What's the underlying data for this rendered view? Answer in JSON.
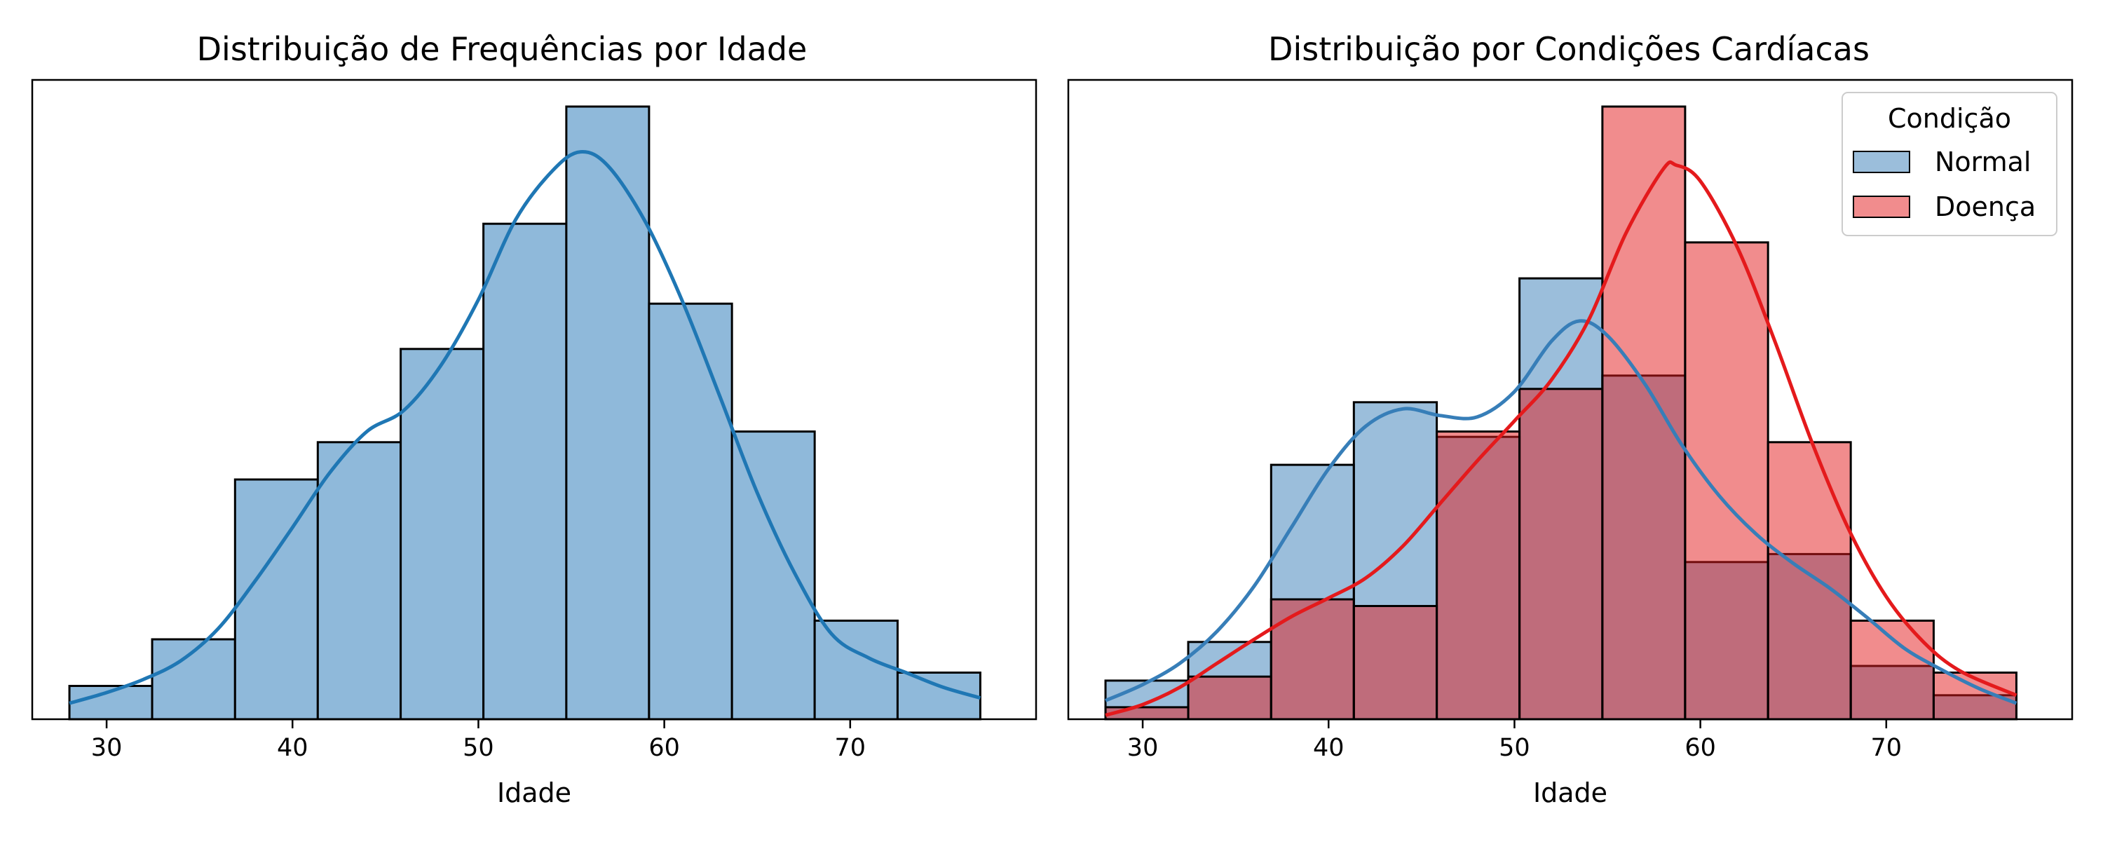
{
  "chart_data": [
    {
      "type": "histogram",
      "title": "Distribuição de Frequências por Idade",
      "xlabel": "Idade",
      "ylabel": "",
      "xlim": [
        26,
        80
      ],
      "ylim": [
        0,
        48
      ],
      "xticks": [
        30,
        40,
        50,
        60,
        70
      ],
      "bin_edges": [
        28,
        32.45,
        36.91,
        41.36,
        45.82,
        50.27,
        54.73,
        59.18,
        63.64,
        68.09,
        72.55,
        77
      ],
      "counts": [
        2.5,
        6,
        18,
        20.8,
        27.8,
        37.2,
        46,
        31.2,
        21.6,
        7.4,
        3.5
      ],
      "kde_color": "#1f77b4",
      "bar_color": "#8fb9da",
      "kde": [
        [
          28,
          1.2
        ],
        [
          30,
          2
        ],
        [
          32,
          3
        ],
        [
          34,
          4.4
        ],
        [
          36,
          6.8
        ],
        [
          38,
          10.4
        ],
        [
          40,
          14.4
        ],
        [
          42,
          18.5
        ],
        [
          44,
          21.6
        ],
        [
          46,
          23.2
        ],
        [
          48,
          26.6
        ],
        [
          50,
          31.5
        ],
        [
          52,
          37.5
        ],
        [
          54,
          41.2
        ],
        [
          55.5,
          42.6
        ],
        [
          57,
          41.5
        ],
        [
          59,
          37.3
        ],
        [
          61,
          31.3
        ],
        [
          63,
          24.2
        ],
        [
          65,
          17
        ],
        [
          67,
          11
        ],
        [
          69,
          6.4
        ],
        [
          71,
          4.6
        ],
        [
          73,
          3.5
        ],
        [
          75,
          2.4
        ],
        [
          77,
          1.6
        ]
      ]
    },
    {
      "type": "histogram",
      "title": "Distribuição por Condições Cardíacas",
      "xlabel": "Idade",
      "ylabel": "",
      "xlim": [
        26,
        80
      ],
      "ylim": [
        0,
        48
      ],
      "xticks": [
        30,
        40,
        50,
        60,
        70
      ],
      "bin_edges": [
        28,
        32.45,
        36.91,
        41.36,
        45.82,
        50.27,
        54.73,
        59.18,
        63.64,
        68.09,
        72.55,
        77
      ],
      "legend": {
        "title": "Condição",
        "placement": "upper-right"
      },
      "series": [
        {
          "name": "Normal",
          "color": "#377eb8",
          "fill": "#9dbedd",
          "counts": [
            2.9,
            5.8,
            19.1,
            23.8,
            21.2,
            33.1,
            25.8,
            11.8,
            12.4,
            4,
            1.8
          ],
          "kde": [
            [
              28,
              1.4
            ],
            [
              30,
              2.6
            ],
            [
              32,
              4.2
            ],
            [
              34,
              6.6
            ],
            [
              36,
              10
            ],
            [
              38,
              14.4
            ],
            [
              40,
              18.8
            ],
            [
              42,
              22
            ],
            [
              44,
              23.3
            ],
            [
              46,
              22.8
            ],
            [
              48,
              22.7
            ],
            [
              50,
              24.6
            ],
            [
              52,
              28.4
            ],
            [
              53.5,
              29.9
            ],
            [
              55,
              28.8
            ],
            [
              57,
              25.2
            ],
            [
              59,
              20.6
            ],
            [
              61,
              16.8
            ],
            [
              63,
              13.9
            ],
            [
              65,
              11.7
            ],
            [
              67,
              9.8
            ],
            [
              69,
              7.6
            ],
            [
              71,
              5.3
            ],
            [
              73,
              3.7
            ],
            [
              75,
              2.3
            ],
            [
              77,
              1.2
            ]
          ]
        },
        {
          "name": "Doença",
          "color": "#e41a1c",
          "fill": "#f08b8c",
          "counts": [
            0.9,
            3.2,
            9,
            8.5,
            21.6,
            24.8,
            46,
            35.8,
            20.8,
            7.4,
            3.5
          ],
          "kde": [
            [
              28,
              0.3
            ],
            [
              30,
              1.1
            ],
            [
              32,
              2.4
            ],
            [
              34,
              4.2
            ],
            [
              36,
              6
            ],
            [
              38,
              7.7
            ],
            [
              40,
              9.1
            ],
            [
              42,
              10.6
            ],
            [
              44,
              13
            ],
            [
              46,
              16.2
            ],
            [
              48,
              19.4
            ],
            [
              50,
              22.4
            ],
            [
              52,
              25.5
            ],
            [
              54,
              30
            ],
            [
              56,
              36.5
            ],
            [
              58,
              41.3
            ],
            [
              58.7,
              41.6
            ],
            [
              60,
              40.4
            ],
            [
              62,
              35.4
            ],
            [
              64,
              28.4
            ],
            [
              66,
              20.8
            ],
            [
              68,
              14.2
            ],
            [
              70,
              9.2
            ],
            [
              72,
              5.8
            ],
            [
              74,
              3.6
            ],
            [
              77,
              1.8
            ]
          ]
        }
      ]
    }
  ]
}
